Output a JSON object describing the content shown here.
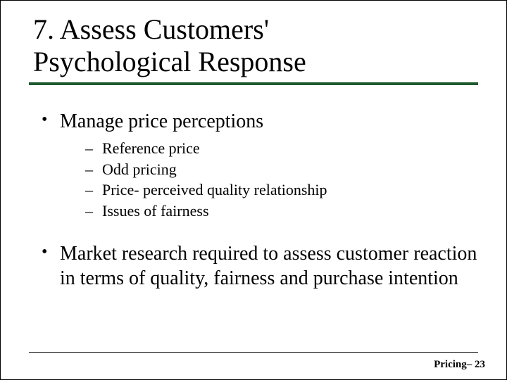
{
  "title_line1": "7. Assess Customers'",
  "title_line2": "Psychological Response",
  "bullets": [
    {
      "text": "Manage price perceptions",
      "subitems": [
        "Reference price",
        "Odd pricing",
        "Price- perceived quality relationship",
        "Issues of fairness"
      ]
    },
    {
      "text": "Market research required to assess customer reaction in terms of quality, fairness and purchase intention",
      "subitems": []
    }
  ],
  "footer": "Pricing– 23",
  "colors": {
    "rule": "#1e5a2e",
    "text": "#000000",
    "background": "#ffffff"
  }
}
